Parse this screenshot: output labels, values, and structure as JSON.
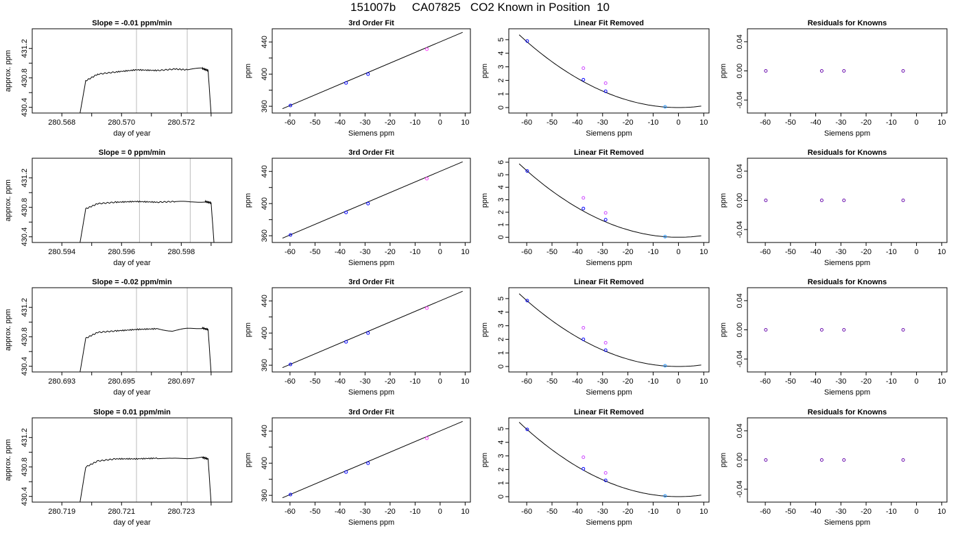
{
  "page": {
    "title": "151007b     CA07825   CO2 Known in Position  10"
  },
  "chart_data": [
    {
      "type": "line",
      "row": 1,
      "panel": "trace",
      "title": "Slope =  -0.01  ppm/min",
      "xlabel": "day of year",
      "ylabel": "approx. ppm",
      "xlim": [
        280.5671,
        280.5736
      ],
      "ylim": [
        430.36,
        431.43
      ],
      "xticks": [
        280.568,
        280.569,
        280.57,
        280.571,
        280.572,
        280.573
      ],
      "xtick_labels": [
        "280.568",
        "",
        "280.570",
        "",
        "280.572",
        ""
      ],
      "yticks": [
        430.4,
        430.6,
        430.8,
        431.0,
        431.2
      ],
      "ytick_labels": [
        "430.4",
        "",
        "430.8",
        "",
        "431.2"
      ],
      "vlines": [
        280.5705,
        280.5722
      ],
      "x": [
        280.5686,
        280.5688,
        280.5692,
        280.5698,
        280.5705,
        280.5712,
        280.5718,
        280.5722,
        280.5727,
        280.5729,
        280.573
      ],
      "y": [
        430.3,
        430.76,
        430.85,
        430.88,
        430.91,
        430.9,
        430.92,
        430.91,
        430.93,
        430.9,
        430.3
      ]
    },
    {
      "type": "scatter",
      "row": 1,
      "panel": "fit",
      "title": "3rd Order Fit",
      "xlabel": "Siemens ppm",
      "ylabel": "ppm",
      "xlim": [
        -66,
        11
      ],
      "ylim": [
        355,
        453
      ],
      "xticks": [
        -60,
        -50,
        -40,
        -30,
        -20,
        -10,
        0,
        10
      ],
      "yticks": [
        360,
        380,
        400,
        420,
        440
      ],
      "ytick_labels": [
        "360",
        "",
        "400",
        "",
        "440"
      ],
      "fit_line": [
        [
          -63,
          357
        ],
        [
          9,
          452
        ]
      ],
      "points": [
        {
          "x": -59.8,
          "y": 361,
          "color": "#0000ff"
        },
        {
          "x": -37.6,
          "y": 389,
          "color": "#0000ff"
        },
        {
          "x": -28.8,
          "y": 400,
          "color": "#0000ff"
        },
        {
          "x": -5.3,
          "y": 431,
          "color": "#ff44ff"
        }
      ]
    },
    {
      "type": "scatter",
      "row": 1,
      "panel": "linear",
      "title": "Linear Fit Removed",
      "xlabel": "Siemens ppm",
      "ylabel": "ppm",
      "xlim": [
        -66,
        11
      ],
      "ylim": [
        -0.2,
        5.6
      ],
      "xticks": [
        -60,
        -50,
        -40,
        -30,
        -20,
        -10,
        0,
        10
      ],
      "yticks": [
        0,
        1,
        2,
        3,
        4,
        5
      ],
      "curve_a": 0.00135,
      "points": [
        {
          "x": -59.8,
          "y": 4.9,
          "color": "#0000ff"
        },
        {
          "x": -37.6,
          "y": 2.05,
          "color": "#0000ff"
        },
        {
          "x": -28.8,
          "y": 1.2,
          "color": "#0000ff"
        },
        {
          "x": -5.3,
          "y": 0.05,
          "color": "#1e90ff"
        },
        {
          "x": -37.6,
          "y": 2.9,
          "color": "#cc44ff"
        },
        {
          "x": -28.8,
          "y": 1.8,
          "color": "#cc44ff"
        }
      ]
    },
    {
      "type": "scatter",
      "row": 1,
      "panel": "resid",
      "title": "Residuals for Knowns",
      "xlabel": "Siemens ppm",
      "ylabel": "ppm",
      "xlim": [
        -66,
        11
      ],
      "ylim": [
        -0.054,
        0.054
      ],
      "xticks": [
        -60,
        -50,
        -40,
        -30,
        -20,
        -10,
        0,
        10
      ],
      "yticks": [
        -0.04,
        0.0,
        0.04
      ],
      "ytick_labels": [
        "-0.04",
        "0.00",
        "0.04"
      ],
      "points": [
        {
          "x": -59.8,
          "y": 0,
          "color": "#6a0dad"
        },
        {
          "x": -37.6,
          "y": 0,
          "color": "#6a0dad"
        },
        {
          "x": -28.8,
          "y": 0,
          "color": "#6a0dad"
        },
        {
          "x": -5.3,
          "y": 0,
          "color": "#6a0dad"
        }
      ]
    },
    {
      "type": "line",
      "row": 2,
      "panel": "trace",
      "title": "Slope =  0  ppm/min",
      "xlabel": "day of year",
      "ylabel": "approx. ppm",
      "xlim": [
        280.5931,
        280.5996
      ],
      "ylim": [
        430.36,
        431.43
      ],
      "xticks": [
        280.594,
        280.595,
        280.596,
        280.597,
        280.598,
        280.599
      ],
      "xtick_labels": [
        "280.594",
        "",
        "280.596",
        "",
        "280.598",
        ""
      ],
      "yticks": [
        430.4,
        430.6,
        430.8,
        431.0,
        431.2
      ],
      "ytick_labels": [
        "430.4",
        "",
        "430.8",
        "",
        "431.2"
      ],
      "vlines": [
        280.5966,
        280.5983
      ],
      "x": [
        280.5946,
        280.5948,
        280.5952,
        280.5958,
        280.5965,
        280.5972,
        280.5978,
        280.5983,
        280.5988,
        280.599,
        280.5991
      ],
      "y": [
        430.3,
        430.78,
        430.85,
        430.87,
        430.88,
        430.87,
        430.88,
        430.87,
        430.88,
        430.86,
        430.3
      ]
    },
    {
      "type": "scatter",
      "row": 2,
      "panel": "fit",
      "title": "3rd Order Fit",
      "xlabel": "Siemens ppm",
      "ylabel": "ppm",
      "xlim": [
        -66,
        11
      ],
      "ylim": [
        355,
        453
      ],
      "xticks": [
        -60,
        -50,
        -40,
        -30,
        -20,
        -10,
        0,
        10
      ],
      "yticks": [
        360,
        380,
        400,
        420,
        440
      ],
      "ytick_labels": [
        "360",
        "",
        "400",
        "",
        "440"
      ],
      "fit_line": [
        [
          -63,
          357
        ],
        [
          9,
          452
        ]
      ],
      "points": [
        {
          "x": -59.8,
          "y": 361,
          "color": "#0000ff"
        },
        {
          "x": -37.6,
          "y": 389,
          "color": "#0000ff"
        },
        {
          "x": -28.8,
          "y": 400,
          "color": "#0000ff"
        },
        {
          "x": -5.3,
          "y": 431,
          "color": "#ff44ff"
        }
      ]
    },
    {
      "type": "scatter",
      "row": 2,
      "panel": "linear",
      "title": "Linear Fit Removed",
      "xlabel": "Siemens ppm",
      "ylabel": "ppm",
      "xlim": [
        -66,
        11
      ],
      "ylim": [
        -0.2,
        6.1
      ],
      "xticks": [
        -60,
        -50,
        -40,
        -30,
        -20,
        -10,
        0,
        10
      ],
      "yticks": [
        0,
        1,
        2,
        3,
        4,
        5,
        6
      ],
      "curve_a": 0.00148,
      "points": [
        {
          "x": -59.8,
          "y": 5.3,
          "color": "#0000ff"
        },
        {
          "x": -37.6,
          "y": 2.3,
          "color": "#0000ff"
        },
        {
          "x": -28.8,
          "y": 1.4,
          "color": "#0000ff"
        },
        {
          "x": -5.3,
          "y": 0.05,
          "color": "#1e90ff"
        },
        {
          "x": -37.6,
          "y": 3.15,
          "color": "#cc44ff"
        },
        {
          "x": -28.8,
          "y": 1.95,
          "color": "#cc44ff"
        }
      ]
    },
    {
      "type": "scatter",
      "row": 2,
      "panel": "resid",
      "title": "Residuals for Knowns",
      "xlabel": "Siemens ppm",
      "ylabel": "ppm",
      "xlim": [
        -66,
        11
      ],
      "ylim": [
        -0.054,
        0.054
      ],
      "xticks": [
        -60,
        -50,
        -40,
        -30,
        -20,
        -10,
        0,
        10
      ],
      "yticks": [
        -0.04,
        0.0,
        0.04
      ],
      "ytick_labels": [
        "-0.04",
        "0.00",
        "0.04"
      ],
      "points": [
        {
          "x": -59.8,
          "y": 0,
          "color": "#6a0dad"
        },
        {
          "x": -37.6,
          "y": 0,
          "color": "#6a0dad"
        },
        {
          "x": -28.8,
          "y": 0,
          "color": "#6a0dad"
        },
        {
          "x": -5.3,
          "y": 0,
          "color": "#6a0dad"
        }
      ]
    },
    {
      "type": "line",
      "row": 3,
      "panel": "trace",
      "title": "Slope =  -0.02  ppm/min",
      "xlabel": "day of year",
      "ylabel": "approx. ppm",
      "xlim": [
        280.6921,
        280.6986
      ],
      "ylim": [
        430.36,
        431.43
      ],
      "xticks": [
        280.693,
        280.694,
        280.695,
        280.696,
        280.697,
        280.698
      ],
      "xtick_labels": [
        "280.693",
        "",
        "280.695",
        "",
        "280.697",
        ""
      ],
      "yticks": [
        430.4,
        430.6,
        430.8,
        431.0,
        431.2
      ],
      "ytick_labels": [
        "430.4",
        "",
        "430.8",
        "",
        "431.2"
      ],
      "vlines": [
        280.6955,
        280.6972
      ],
      "x": [
        280.6936,
        280.6938,
        280.6942,
        280.6948,
        280.6955,
        280.6962,
        280.6967,
        280.6972,
        280.6977,
        280.6979,
        280.698
      ],
      "y": [
        430.3,
        430.78,
        430.86,
        430.88,
        430.9,
        430.91,
        430.88,
        430.91,
        430.92,
        430.9,
        430.3
      ]
    },
    {
      "type": "scatter",
      "row": 3,
      "panel": "fit",
      "title": "3rd Order Fit",
      "xlabel": "Siemens ppm",
      "ylabel": "ppm",
      "xlim": [
        -66,
        11
      ],
      "ylim": [
        355,
        453
      ],
      "xticks": [
        -60,
        -50,
        -40,
        -30,
        -20,
        -10,
        0,
        10
      ],
      "yticks": [
        360,
        380,
        400,
        420,
        440
      ],
      "ytick_labels": [
        "360",
        "",
        "400",
        "",
        "440"
      ],
      "fit_line": [
        [
          -63,
          357
        ],
        [
          9,
          452
        ]
      ],
      "points": [
        {
          "x": -59.8,
          "y": 361,
          "color": "#0000ff"
        },
        {
          "x": -37.6,
          "y": 389,
          "color": "#0000ff"
        },
        {
          "x": -28.8,
          "y": 400,
          "color": "#0000ff"
        },
        {
          "x": -5.3,
          "y": 431,
          "color": "#ff44ff"
        }
      ]
    },
    {
      "type": "scatter",
      "row": 3,
      "panel": "linear",
      "title": "Linear Fit Removed",
      "xlabel": "Siemens ppm",
      "ylabel": "ppm",
      "xlim": [
        -66,
        11
      ],
      "ylim": [
        -0.2,
        5.6
      ],
      "xticks": [
        -60,
        -50,
        -40,
        -30,
        -20,
        -10,
        0,
        10
      ],
      "yticks": [
        0,
        1,
        2,
        3,
        4,
        5
      ],
      "curve_a": 0.00135,
      "points": [
        {
          "x": -59.8,
          "y": 4.85,
          "color": "#0000ff"
        },
        {
          "x": -37.6,
          "y": 2.0,
          "color": "#0000ff"
        },
        {
          "x": -28.8,
          "y": 1.2,
          "color": "#0000ff"
        },
        {
          "x": -5.3,
          "y": 0.05,
          "color": "#1e90ff"
        },
        {
          "x": -37.6,
          "y": 2.85,
          "color": "#cc44ff"
        },
        {
          "x": -28.8,
          "y": 1.75,
          "color": "#cc44ff"
        }
      ]
    },
    {
      "type": "scatter",
      "row": 3,
      "panel": "resid",
      "title": "Residuals for Knowns",
      "xlabel": "Siemens ppm",
      "ylabel": "ppm",
      "xlim": [
        -66,
        11
      ],
      "ylim": [
        -0.054,
        0.054
      ],
      "xticks": [
        -60,
        -50,
        -40,
        -30,
        -20,
        -10,
        0,
        10
      ],
      "yticks": [
        -0.04,
        0.0,
        0.04
      ],
      "ytick_labels": [
        "-0.04",
        "0.00",
        "0.04"
      ],
      "points": [
        {
          "x": -59.8,
          "y": 0,
          "color": "#6a0dad"
        },
        {
          "x": -37.6,
          "y": 0,
          "color": "#6a0dad"
        },
        {
          "x": -28.8,
          "y": 0,
          "color": "#6a0dad"
        },
        {
          "x": -5.3,
          "y": 0,
          "color": "#6a0dad"
        }
      ]
    },
    {
      "type": "line",
      "row": 4,
      "panel": "trace",
      "title": "Slope =  0.01  ppm/min",
      "xlabel": "day of year",
      "ylabel": "approx. ppm",
      "xlim": [
        280.7181,
        280.7246
      ],
      "ylim": [
        430.36,
        431.43
      ],
      "xticks": [
        280.719,
        280.72,
        280.721,
        280.722,
        280.723,
        280.724
      ],
      "xtick_labels": [
        "280.719",
        "",
        "280.721",
        "",
        "280.723",
        ""
      ],
      "yticks": [
        430.4,
        430.6,
        430.8,
        431.0,
        431.2
      ],
      "ytick_labels": [
        "430.4",
        "",
        "430.8",
        "",
        "431.2"
      ],
      "vlines": [
        280.7215,
        280.7232
      ],
      "x": [
        280.7196,
        280.7198,
        280.7202,
        280.7208,
        280.7215,
        280.7222,
        280.7227,
        280.7232,
        280.7237,
        280.7239,
        280.724
      ],
      "y": [
        430.3,
        430.8,
        430.88,
        430.91,
        430.91,
        430.92,
        430.91,
        430.92,
        430.93,
        430.91,
        430.3
      ]
    },
    {
      "type": "scatter",
      "row": 4,
      "panel": "fit",
      "title": "3rd Order Fit",
      "xlabel": "Siemens ppm",
      "ylabel": "ppm",
      "xlim": [
        -66,
        11
      ],
      "ylim": [
        355,
        453
      ],
      "xticks": [
        -60,
        -50,
        -40,
        -30,
        -20,
        -10,
        0,
        10
      ],
      "yticks": [
        360,
        380,
        400,
        420,
        440
      ],
      "ytick_labels": [
        "360",
        "",
        "400",
        "",
        "440"
      ],
      "fit_line": [
        [
          -63,
          357
        ],
        [
          9,
          452
        ]
      ],
      "points": [
        {
          "x": -59.8,
          "y": 361,
          "color": "#0000ff"
        },
        {
          "x": -37.6,
          "y": 389,
          "color": "#0000ff"
        },
        {
          "x": -28.8,
          "y": 400,
          "color": "#0000ff"
        },
        {
          "x": -5.3,
          "y": 431,
          "color": "#ff44ff"
        }
      ]
    },
    {
      "type": "scatter",
      "row": 4,
      "panel": "linear",
      "title": "Linear Fit Removed",
      "xlabel": "Siemens ppm",
      "ylabel": "ppm",
      "xlim": [
        -66,
        11
      ],
      "ylim": [
        -0.2,
        5.6
      ],
      "xticks": [
        -60,
        -50,
        -40,
        -30,
        -20,
        -10,
        0,
        10
      ],
      "yticks": [
        0,
        1,
        2,
        3,
        4,
        5
      ],
      "curve_a": 0.00138,
      "points": [
        {
          "x": -59.8,
          "y": 4.95,
          "color": "#0000ff"
        },
        {
          "x": -37.6,
          "y": 2.05,
          "color": "#0000ff"
        },
        {
          "x": -28.8,
          "y": 1.2,
          "color": "#0000ff"
        },
        {
          "x": -5.3,
          "y": 0.05,
          "color": "#1e90ff"
        },
        {
          "x": -37.6,
          "y": 2.9,
          "color": "#cc44ff"
        },
        {
          "x": -28.8,
          "y": 1.75,
          "color": "#cc44ff"
        }
      ]
    },
    {
      "type": "scatter",
      "row": 4,
      "panel": "resid",
      "title": "Residuals for Knowns",
      "xlabel": "Siemens ppm",
      "ylabel": "ppm",
      "xlim": [
        -66,
        11
      ],
      "ylim": [
        -0.054,
        0.054
      ],
      "xticks": [
        -60,
        -50,
        -40,
        -30,
        -20,
        -10,
        0,
        10
      ],
      "yticks": [
        -0.04,
        0.0,
        0.04
      ],
      "ytick_labels": [
        "-0.04",
        "0.00",
        "0.04"
      ],
      "points": [
        {
          "x": -59.8,
          "y": 0,
          "color": "#6a0dad"
        },
        {
          "x": -37.6,
          "y": 0,
          "color": "#6a0dad"
        },
        {
          "x": -28.8,
          "y": 0,
          "color": "#6a0dad"
        },
        {
          "x": -5.3,
          "y": 0,
          "color": "#6a0dad"
        }
      ]
    }
  ]
}
